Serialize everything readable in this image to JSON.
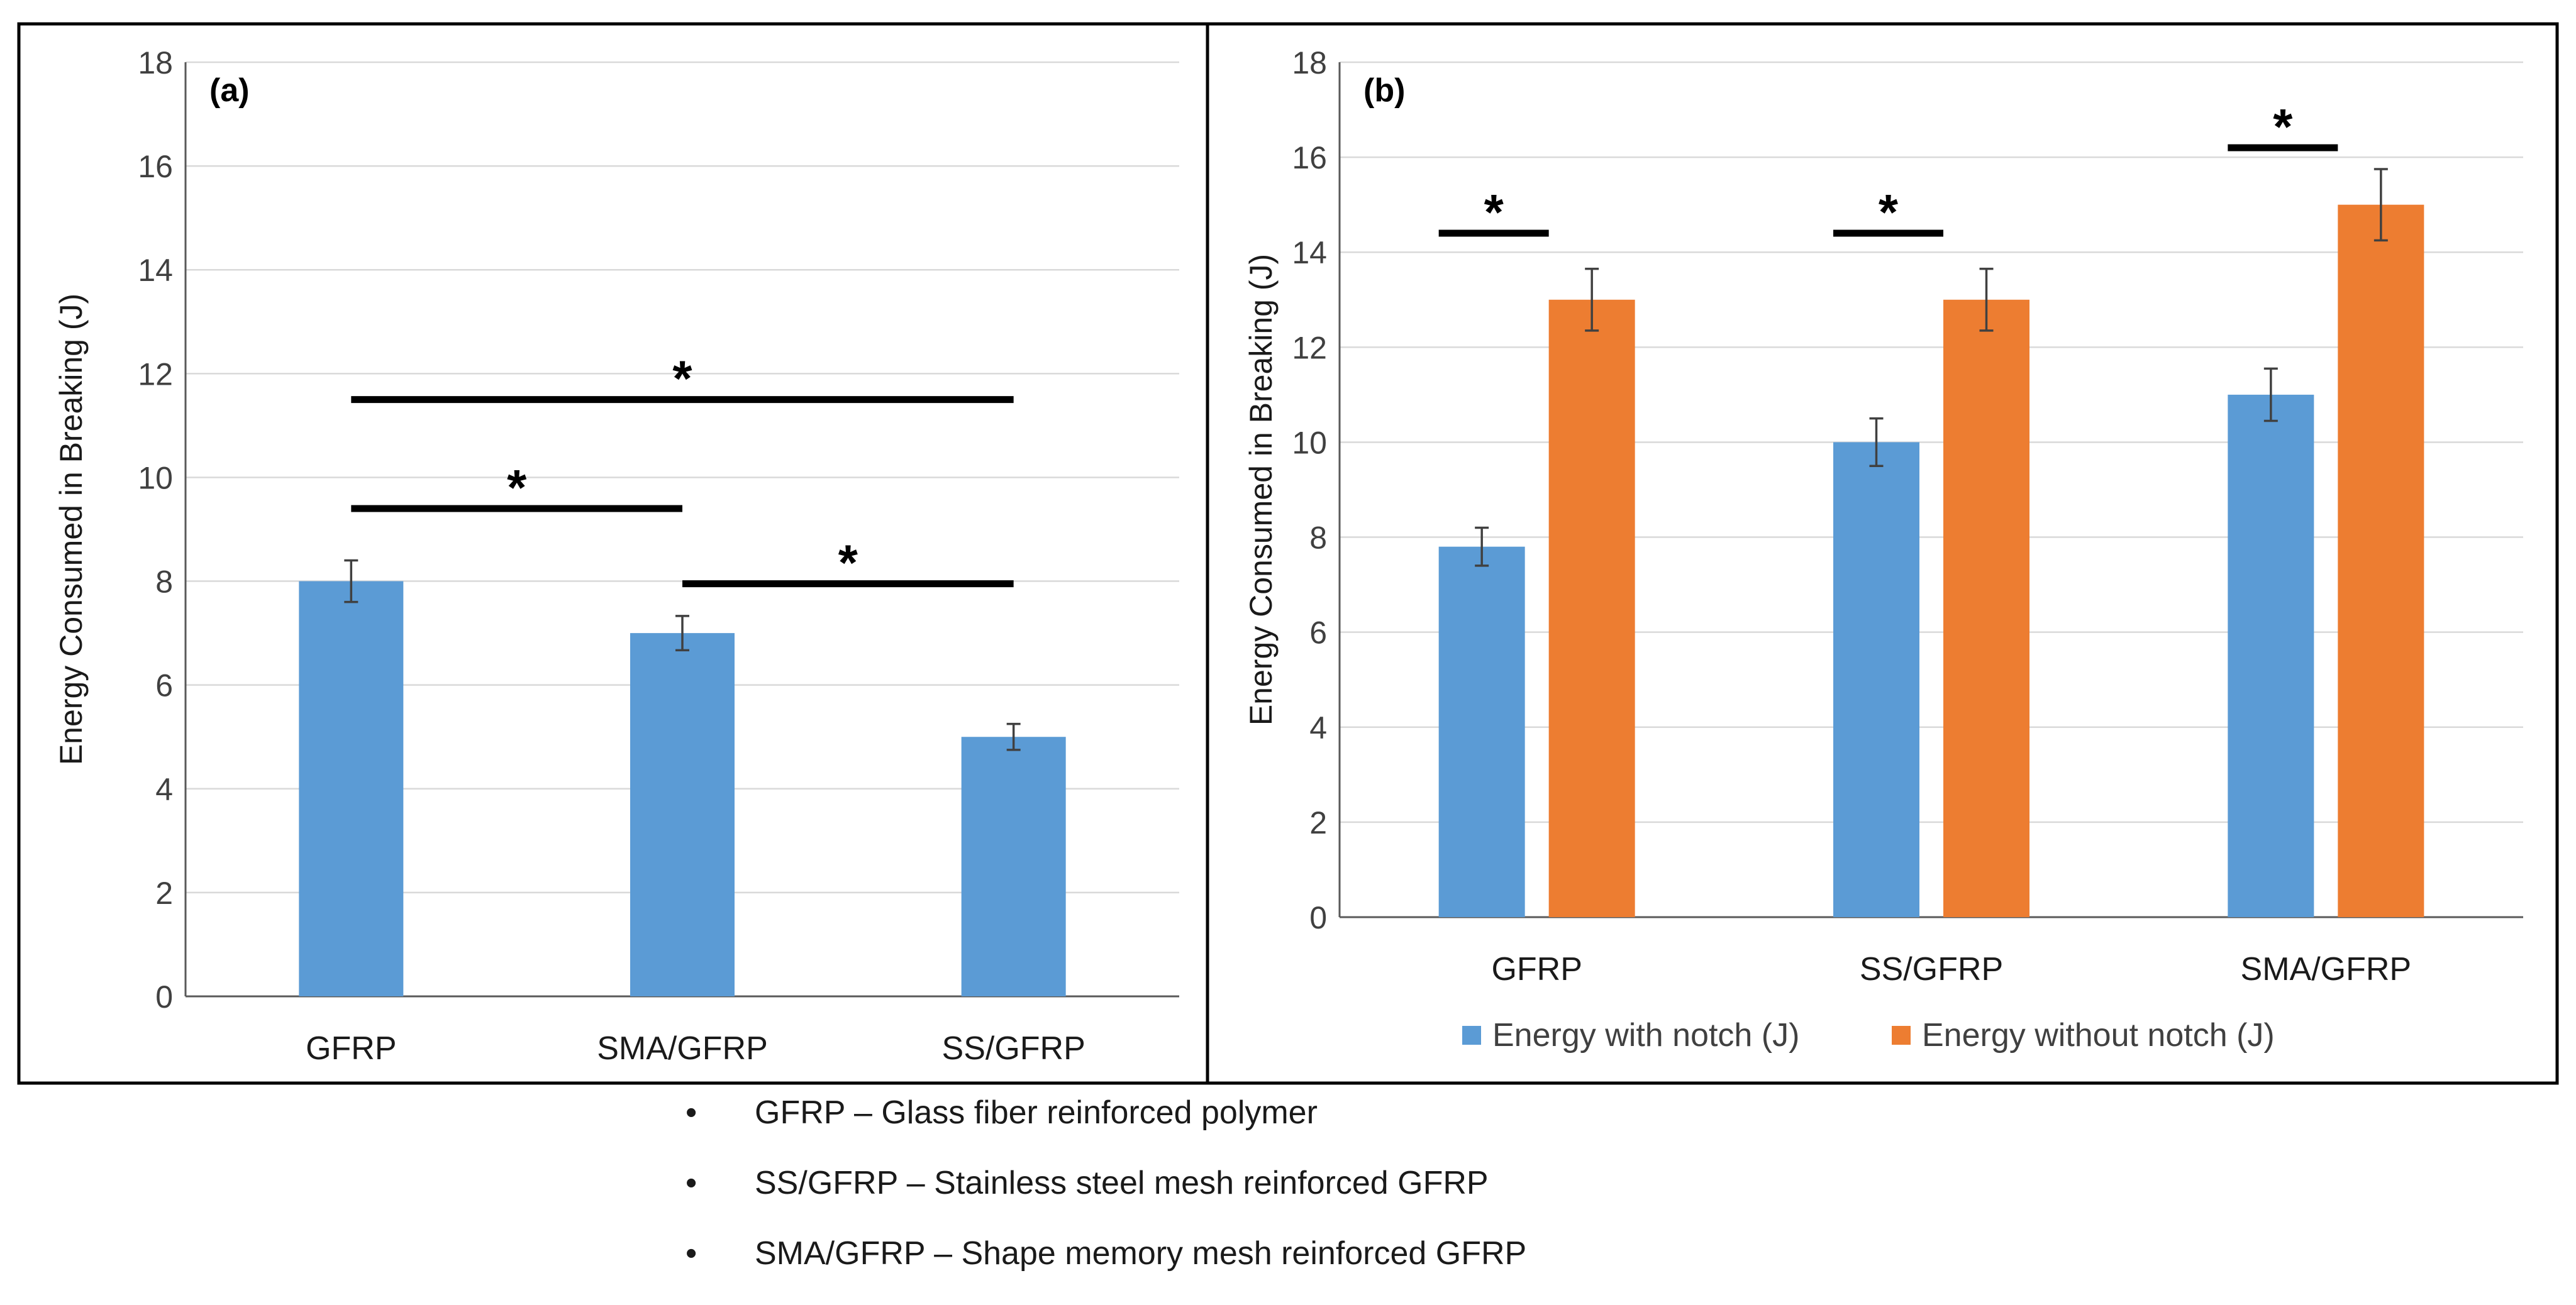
{
  "colors": {
    "blue": "#5B9BD5",
    "orange": "#ED7D31",
    "grid": "#d9d9d9",
    "axis": "#595959",
    "text": "#404040"
  },
  "chart_data": [
    {
      "type": "bar",
      "panel_label": "(a)",
      "ylabel": "Energy Consumed in Breaking (J)",
      "ylim": [
        0,
        18
      ],
      "yticks": [
        0,
        2,
        4,
        6,
        8,
        10,
        12,
        14,
        16,
        18
      ],
      "grid": true,
      "categories": [
        "GFRP",
        "SMA/GFRP",
        "SS/GFRP"
      ],
      "series": [
        {
          "name": "Energy Consumed in Breaking (J)",
          "color": "#5B9BD5",
          "values": [
            8,
            7,
            5
          ],
          "errors": [
            0.4,
            0.33,
            0.25
          ]
        }
      ],
      "significance": [
        {
          "from": 0,
          "to": 2,
          "level": 11.5,
          "label": "*"
        },
        {
          "from": 0,
          "to": 1,
          "level": 9.4,
          "label": "*"
        },
        {
          "from": 1,
          "to": 2,
          "level": 7.95,
          "label": "*"
        }
      ]
    },
    {
      "type": "bar",
      "panel_label": "(b)",
      "ylabel": "Energy Consumed in Breaking (J)",
      "ylim": [
        0,
        18
      ],
      "yticks": [
        0,
        2,
        4,
        6,
        8,
        10,
        12,
        14,
        16,
        18
      ],
      "grid": true,
      "categories": [
        "GFRP",
        "SS/GFRP",
        "SMA/GFRP"
      ],
      "series": [
        {
          "name": "Energy with notch (J)",
          "color": "#5B9BD5",
          "values": [
            7.8,
            10,
            11
          ],
          "errors": [
            0.4,
            0.5,
            0.55
          ]
        },
        {
          "name": "Energy without notch (J)",
          "color": "#ED7D31",
          "values": [
            13,
            13,
            15
          ],
          "errors": [
            0.65,
            0.65,
            0.75
          ]
        }
      ],
      "legend": [
        "Energy with notch (J)",
        "Energy without notch (J)"
      ],
      "legend_position": "bottom",
      "significance": [
        {
          "category": 0,
          "level": 14.4,
          "label": "*"
        },
        {
          "category": 1,
          "level": 14.4,
          "label": "*"
        },
        {
          "category": 2,
          "level": 16.2,
          "label": "*"
        }
      ]
    }
  ],
  "notes": [
    {
      "bullet": "•",
      "text": "GFRP  –  Glass fiber reinforced polymer"
    },
    {
      "bullet": "•",
      "text": "SS/GFRP – Stainless steel mesh reinforced GFRP"
    },
    {
      "bullet": "•",
      "text": "SMA/GFRP – Shape memory mesh reinforced GFRP"
    }
  ]
}
